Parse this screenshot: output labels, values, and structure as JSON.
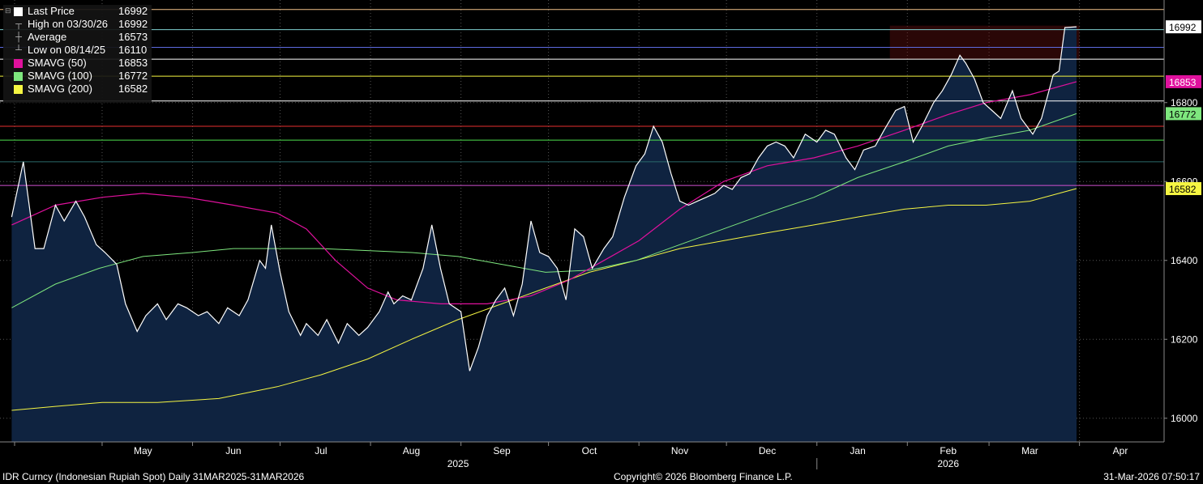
{
  "legend": {
    "items": [
      {
        "label": "Last Price",
        "value": "16992",
        "color": "#ffffff",
        "kind": "swatch"
      },
      {
        "label": "High on 03/30/26",
        "value": "16992",
        "kind": "high"
      },
      {
        "label": "Average",
        "value": "16573",
        "kind": "avg"
      },
      {
        "label": "Low on 08/14/25",
        "value": "16110",
        "kind": "low"
      },
      {
        "label": "SMAVG (50)",
        "value": "16853",
        "color": "#e0119d",
        "kind": "swatch"
      },
      {
        "label": "SMAVG (100)",
        "value": "16772",
        "color": "#7ee77e",
        "kind": "swatch"
      },
      {
        "label": "SMAVG (200)",
        "value": "16582",
        "color": "#f5f542",
        "kind": "swatch"
      }
    ]
  },
  "footer": {
    "left": "IDR Curncy (Indonesian Rupiah Spot) Daily 31MAR2025-31MAR2026",
    "center": "Copyright© 2026 Bloomberg Finance L.P.",
    "right": "31-Mar-2026 07:50:17"
  },
  "chart_data": {
    "type": "line",
    "ylim": [
      15940,
      17060
    ],
    "yticks": [
      16000,
      16200,
      16400,
      16600,
      16800
    ],
    "x_month_labels": [
      {
        "label": "May",
        "date": "2025-05-15"
      },
      {
        "label": "Jun",
        "date": "2025-06-15"
      },
      {
        "label": "Jul",
        "date": "2025-07-15"
      },
      {
        "label": "Aug",
        "date": "2025-08-15"
      },
      {
        "label": "Sep",
        "date": "2025-09-15"
      },
      {
        "label": "Oct",
        "date": "2025-10-15"
      },
      {
        "label": "Nov",
        "date": "2025-11-15"
      },
      {
        "label": "Dec",
        "date": "2025-12-15"
      },
      {
        "label": "Jan",
        "date": "2026-01-15"
      },
      {
        "label": "Feb",
        "date": "2026-02-15"
      },
      {
        "label": "Mar",
        "date": "2026-03-15"
      },
      {
        "label": "Apr",
        "date": "2026-04-15"
      }
    ],
    "x_year_labels": [
      {
        "label": "2025",
        "date": "2025-08-31"
      },
      {
        "label": "2026",
        "date": "2026-02-15"
      }
    ],
    "right_labels": [
      {
        "value": 16992,
        "text": "16992",
        "bg": "#ffffff",
        "fg": "#000000"
      },
      {
        "value": 16853,
        "text": "16853",
        "bg": "#e0119d",
        "fg": "#ffffff"
      },
      {
        "value": 16772,
        "text": "16772",
        "bg": "#7ee77e",
        "fg": "#000000"
      },
      {
        "value": 16582,
        "text": "16582",
        "bg": "#f5f542",
        "fg": "#000000"
      }
    ],
    "hlines": [
      {
        "value": 17036,
        "color": "#f2c18a"
      },
      {
        "value": 16985,
        "color": "#7fd0d0"
      },
      {
        "value": 16940,
        "color": "#5d6be0"
      },
      {
        "value": 16910,
        "color": "#ffffff"
      },
      {
        "value": 16867,
        "color": "#f5f542"
      },
      {
        "value": 16804,
        "color": "#ffffff"
      },
      {
        "value": 16740,
        "color": "#e63030"
      },
      {
        "value": 16705,
        "color": "#4ee04e"
      },
      {
        "value": 16650,
        "color": "#2a6a6a"
      },
      {
        "value": 16590,
        "color": "#d050d0"
      }
    ],
    "shaded_band": {
      "from": "2026-01-26",
      "to": "2026-04-01",
      "y1": 16910,
      "y2": 16995,
      "color": "rgba(120,20,20,0.35)"
    },
    "last_price": [
      [
        "2025-03-31",
        16510
      ],
      [
        "2025-04-04",
        16650
      ],
      [
        "2025-04-08",
        16430
      ],
      [
        "2025-04-11",
        16430
      ],
      [
        "2025-04-15",
        16540
      ],
      [
        "2025-04-18",
        16500
      ],
      [
        "2025-04-22",
        16550
      ],
      [
        "2025-04-25",
        16510
      ],
      [
        "2025-04-29",
        16440
      ],
      [
        "2025-05-02",
        16420
      ],
      [
        "2025-05-06",
        16390
      ],
      [
        "2025-05-09",
        16290
      ],
      [
        "2025-05-13",
        16220
      ],
      [
        "2025-05-16",
        16260
      ],
      [
        "2025-05-20",
        16290
      ],
      [
        "2025-05-23",
        16250
      ],
      [
        "2025-05-27",
        16290
      ],
      [
        "2025-05-30",
        16280
      ],
      [
        "2025-06-03",
        16260
      ],
      [
        "2025-06-06",
        16270
      ],
      [
        "2025-06-10",
        16240
      ],
      [
        "2025-06-13",
        16280
      ],
      [
        "2025-06-17",
        16260
      ],
      [
        "2025-06-20",
        16300
      ],
      [
        "2025-06-24",
        16400
      ],
      [
        "2025-06-26",
        16380
      ],
      [
        "2025-06-28",
        16490
      ],
      [
        "2025-07-01",
        16370
      ],
      [
        "2025-07-04",
        16270
      ],
      [
        "2025-07-08",
        16210
      ],
      [
        "2025-07-10",
        16240
      ],
      [
        "2025-07-14",
        16210
      ],
      [
        "2025-07-17",
        16250
      ],
      [
        "2025-07-21",
        16190
      ],
      [
        "2025-07-24",
        16240
      ],
      [
        "2025-07-28",
        16210
      ],
      [
        "2025-07-31",
        16230
      ],
      [
        "2025-08-04",
        16270
      ],
      [
        "2025-08-07",
        16320
      ],
      [
        "2025-08-09",
        16290
      ],
      [
        "2025-08-12",
        16310
      ],
      [
        "2025-08-15",
        16300
      ],
      [
        "2025-08-19",
        16380
      ],
      [
        "2025-08-22",
        16490
      ],
      [
        "2025-08-25",
        16380
      ],
      [
        "2025-08-28",
        16290
      ],
      [
        "2025-09-01",
        16270
      ],
      [
        "2025-09-04",
        16120
      ],
      [
        "2025-09-07",
        16180
      ],
      [
        "2025-09-10",
        16260
      ],
      [
        "2025-09-13",
        16300
      ],
      [
        "2025-09-16",
        16330
      ],
      [
        "2025-09-19",
        16260
      ],
      [
        "2025-09-22",
        16340
      ],
      [
        "2025-09-25",
        16500
      ],
      [
        "2025-09-28",
        16420
      ],
      [
        "2025-10-01",
        16410
      ],
      [
        "2025-10-04",
        16380
      ],
      [
        "2025-10-07",
        16300
      ],
      [
        "2025-10-10",
        16480
      ],
      [
        "2025-10-13",
        16460
      ],
      [
        "2025-10-16",
        16380
      ],
      [
        "2025-10-20",
        16430
      ],
      [
        "2025-10-23",
        16460
      ],
      [
        "2025-10-27",
        16560
      ],
      [
        "2025-10-31",
        16640
      ],
      [
        "2025-11-03",
        16670
      ],
      [
        "2025-11-06",
        16740
      ],
      [
        "2025-11-09",
        16700
      ],
      [
        "2025-11-12",
        16620
      ],
      [
        "2025-11-15",
        16550
      ],
      [
        "2025-11-18",
        16540
      ],
      [
        "2025-11-21",
        16550
      ],
      [
        "2025-11-24",
        16560
      ],
      [
        "2025-11-27",
        16570
      ],
      [
        "2025-11-30",
        16590
      ],
      [
        "2025-12-03",
        16580
      ],
      [
        "2025-12-06",
        16610
      ],
      [
        "2025-12-09",
        16620
      ],
      [
        "2025-12-12",
        16660
      ],
      [
        "2025-12-15",
        16690
      ],
      [
        "2025-12-18",
        16700
      ],
      [
        "2025-12-21",
        16690
      ],
      [
        "2025-12-24",
        16660
      ],
      [
        "2025-12-28",
        16720
      ],
      [
        "2026-01-01",
        16700
      ],
      [
        "2026-01-04",
        16730
      ],
      [
        "2026-01-07",
        16720
      ],
      [
        "2026-01-11",
        16660
      ],
      [
        "2026-01-14",
        16630
      ],
      [
        "2026-01-17",
        16680
      ],
      [
        "2026-01-21",
        16690
      ],
      [
        "2026-01-24",
        16730
      ],
      [
        "2026-01-28",
        16780
      ],
      [
        "2026-01-31",
        16790
      ],
      [
        "2026-02-03",
        16700
      ],
      [
        "2026-02-06",
        16740
      ],
      [
        "2026-02-10",
        16800
      ],
      [
        "2026-02-13",
        16830
      ],
      [
        "2026-02-16",
        16870
      ],
      [
        "2026-02-19",
        16920
      ],
      [
        "2026-02-21",
        16900
      ],
      [
        "2026-02-24",
        16860
      ],
      [
        "2026-02-27",
        16800
      ],
      [
        "2026-03-02",
        16780
      ],
      [
        "2026-03-05",
        16760
      ],
      [
        "2026-03-09",
        16830
      ],
      [
        "2026-03-12",
        16760
      ],
      [
        "2026-03-16",
        16720
      ],
      [
        "2026-03-19",
        16760
      ],
      [
        "2026-03-23",
        16870
      ],
      [
        "2026-03-25",
        16880
      ],
      [
        "2026-03-27",
        16990
      ],
      [
        "2026-03-31",
        16992
      ]
    ],
    "smavg_50": [
      [
        "2025-03-31",
        16490
      ],
      [
        "2025-04-15",
        16540
      ],
      [
        "2025-05-01",
        16560
      ],
      [
        "2025-05-15",
        16570
      ],
      [
        "2025-05-30",
        16560
      ],
      [
        "2025-06-15",
        16540
      ],
      [
        "2025-06-30",
        16520
      ],
      [
        "2025-07-10",
        16480
      ],
      [
        "2025-07-20",
        16400
      ],
      [
        "2025-07-31",
        16330
      ],
      [
        "2025-08-10",
        16300
      ],
      [
        "2025-08-25",
        16290
      ],
      [
        "2025-09-10",
        16290
      ],
      [
        "2025-09-25",
        16310
      ],
      [
        "2025-10-08",
        16350
      ],
      [
        "2025-10-20",
        16400
      ],
      [
        "2025-11-01",
        16450
      ],
      [
        "2025-11-15",
        16530
      ],
      [
        "2025-11-30",
        16600
      ],
      [
        "2025-12-15",
        16640
      ],
      [
        "2025-12-31",
        16660
      ],
      [
        "2026-01-15",
        16690
      ],
      [
        "2026-01-31",
        16730
      ],
      [
        "2026-02-15",
        16770
      ],
      [
        "2026-02-28",
        16800
      ],
      [
        "2026-03-15",
        16820
      ],
      [
        "2026-03-31",
        16853
      ]
    ],
    "smavg_100": [
      [
        "2025-03-31",
        16280
      ],
      [
        "2025-04-15",
        16340
      ],
      [
        "2025-04-30",
        16380
      ],
      [
        "2025-05-15",
        16410
      ],
      [
        "2025-06-01",
        16420
      ],
      [
        "2025-06-15",
        16430
      ],
      [
        "2025-06-30",
        16430
      ],
      [
        "2025-07-15",
        16430
      ],
      [
        "2025-07-31",
        16425
      ],
      [
        "2025-08-15",
        16420
      ],
      [
        "2025-08-31",
        16410
      ],
      [
        "2025-09-15",
        16390
      ],
      [
        "2025-09-30",
        16370
      ],
      [
        "2025-10-15",
        16375
      ],
      [
        "2025-10-31",
        16400
      ],
      [
        "2025-11-15",
        16440
      ],
      [
        "2025-11-30",
        16480
      ],
      [
        "2025-12-15",
        16520
      ],
      [
        "2025-12-31",
        16560
      ],
      [
        "2026-01-15",
        16610
      ],
      [
        "2026-01-31",
        16650
      ],
      [
        "2026-02-15",
        16690
      ],
      [
        "2026-02-28",
        16710
      ],
      [
        "2026-03-15",
        16730
      ],
      [
        "2026-03-31",
        16772
      ]
    ],
    "smavg_200": [
      [
        "2025-03-31",
        16020
      ],
      [
        "2025-04-15",
        16030
      ],
      [
        "2025-05-01",
        16040
      ],
      [
        "2025-05-20",
        16040
      ],
      [
        "2025-06-10",
        16050
      ],
      [
        "2025-06-30",
        16080
      ],
      [
        "2025-07-15",
        16110
      ],
      [
        "2025-07-31",
        16150
      ],
      [
        "2025-08-15",
        16200
      ],
      [
        "2025-08-31",
        16250
      ],
      [
        "2025-09-15",
        16290
      ],
      [
        "2025-09-30",
        16330
      ],
      [
        "2025-10-15",
        16370
      ],
      [
        "2025-10-31",
        16400
      ],
      [
        "2025-11-15",
        16430
      ],
      [
        "2025-11-30",
        16450
      ],
      [
        "2025-12-15",
        16470
      ],
      [
        "2025-12-31",
        16490
      ],
      [
        "2026-01-15",
        16510
      ],
      [
        "2026-01-31",
        16530
      ],
      [
        "2026-02-15",
        16540
      ],
      [
        "2026-02-28",
        16540
      ],
      [
        "2026-03-15",
        16550
      ],
      [
        "2026-03-31",
        16582
      ]
    ]
  }
}
